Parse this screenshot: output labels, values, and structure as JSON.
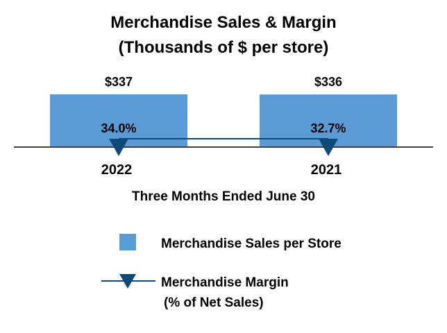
{
  "chart_data": {
    "type": "bar",
    "title": "Merchandise Sales & Margin",
    "subtitle": "(Thousands of $ per store)",
    "xlabel": "Three Months Ended June 30",
    "categories": [
      "2022",
      "2021"
    ],
    "grid": false,
    "legend_position": "bottom",
    "series": [
      {
        "name": "Merchandise Sales per Store",
        "kind": "bar",
        "values": [
          337,
          336
        ],
        "labels": [
          "$337",
          "$336"
        ],
        "color": "#5b9bd5"
      },
      {
        "name": "Merchandise Margin",
        "name_line2": "(% of Net Sales)",
        "kind": "line",
        "marker": "triangle-down",
        "values": [
          34.0,
          32.7
        ],
        "labels": [
          "34.0%",
          "32.7%"
        ],
        "color": "#0d4a7a"
      }
    ]
  }
}
